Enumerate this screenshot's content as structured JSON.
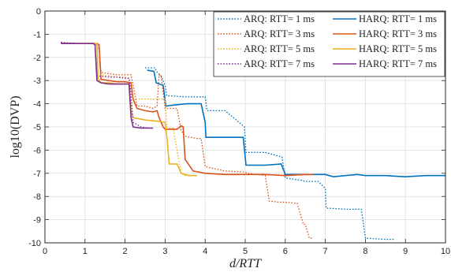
{
  "chart_data": {
    "type": "line",
    "xlabel": "d/RTT",
    "ylabel": "log10(DVP)",
    "xlim": [
      0,
      10
    ],
    "ylim": [
      -10,
      0
    ],
    "x_ticks": [
      "0",
      "1",
      "2",
      "3",
      "4",
      "5",
      "6",
      "7",
      "8",
      "9",
      "10"
    ],
    "y_ticks": [
      "0",
      "-1",
      "-2",
      "-3",
      "-4",
      "-5",
      "-6",
      "-7",
      "-8",
      "-9",
      "-10"
    ],
    "grid": true,
    "legend_position": "top-right",
    "series": [
      {
        "name": "ARQ: RTT= 1 ms",
        "color": "#0072BD",
        "style": "dotted",
        "x": [
          2.5,
          2.75,
          2.78,
          2.9,
          3.0,
          3.04,
          3.5,
          4.0,
          4.05,
          4.5,
          4.98,
          5.02,
          5.5,
          5.92,
          6.0,
          6.4,
          6.5,
          6.82,
          7.0,
          7.02,
          7.5,
          7.9,
          8.0,
          8.5,
          8.75
        ],
        "y": [
          -2.45,
          -2.45,
          -2.6,
          -2.8,
          -3.2,
          -3.65,
          -3.7,
          -3.7,
          -4.3,
          -4.3,
          -5.0,
          -6.1,
          -6.1,
          -6.3,
          -7.2,
          -7.3,
          -7.35,
          -7.35,
          -7.65,
          -8.5,
          -8.55,
          -8.55,
          -9.8,
          -9.85,
          -9.85
        ]
      },
      {
        "name": "HARQ: RTT= 1 ms",
        "color": "#0072BD",
        "style": "solid",
        "x": [
          2.55,
          2.72,
          2.78,
          2.95,
          3.02,
          3.25,
          3.55,
          3.9,
          4.0,
          4.02,
          4.4,
          4.95,
          5.02,
          5.5,
          5.9,
          6.0,
          6.5,
          7.0,
          7.2,
          7.5,
          7.8,
          8.0,
          8.5,
          9.0,
          9.5,
          10.0
        ],
        "y": [
          -2.55,
          -2.6,
          -3.1,
          -3.2,
          -4.1,
          -4.05,
          -4.0,
          -4.0,
          -4.8,
          -5.45,
          -5.45,
          -5.45,
          -6.65,
          -6.65,
          -6.6,
          -7.05,
          -7.05,
          -7.05,
          -7.15,
          -7.1,
          -7.05,
          -7.1,
          -7.1,
          -7.15,
          -7.1,
          -7.1
        ]
      },
      {
        "name": "ARQ: RTT= 3 ms",
        "color": "#D95319",
        "style": "dotted",
        "x": [
          0.4,
          0.8,
          1.0,
          1.1,
          1.2,
          1.3,
          1.35,
          1.4,
          1.6,
          1.8,
          2.0,
          2.15,
          2.2,
          2.3,
          2.5,
          2.7,
          2.8,
          2.85,
          2.9,
          3.0,
          3.3,
          3.4,
          3.5,
          3.8,
          3.9,
          4.0,
          4.1,
          4.5,
          5.0,
          5.05,
          5.3,
          5.5,
          5.6,
          5.85,
          5.9,
          6.0,
          6.3,
          6.45,
          6.5,
          6.6,
          6.7
        ],
        "y": [
          -1.35,
          -1.4,
          -1.4,
          -1.4,
          -1.4,
          -1.45,
          -1.65,
          -2.65,
          -2.7,
          -2.75,
          -2.75,
          -2.75,
          -3.2,
          -4.1,
          -4.1,
          -4.2,
          -4.1,
          -2.75,
          -2.8,
          -4.2,
          -4.2,
          -5.15,
          -5.4,
          -5.5,
          -5.5,
          -6.7,
          -6.75,
          -6.9,
          -6.95,
          -7.0,
          -7.05,
          -7.1,
          -8.2,
          -8.25,
          -8.25,
          -8.25,
          -8.3,
          -9.2,
          -9.2,
          -9.8,
          -9.8
        ]
      },
      {
        "name": "HARQ: RTT= 3 ms",
        "color": "#D95319",
        "style": "solid",
        "x": [
          0.4,
          0.8,
          1.0,
          1.1,
          1.2,
          1.3,
          1.35,
          1.4,
          1.6,
          1.8,
          2.0,
          2.15,
          2.2,
          2.3,
          2.5,
          2.7,
          2.8,
          2.85,
          2.95,
          3.0,
          3.3,
          3.4,
          3.45,
          3.5,
          3.7,
          4.0,
          4.5,
          5.0,
          5.5,
          6.0,
          6.5,
          6.7
        ],
        "y": [
          -1.4,
          -1.4,
          -1.4,
          -1.4,
          -1.4,
          -1.4,
          -1.45,
          -2.95,
          -3.0,
          -3.05,
          -3.05,
          -3.1,
          -3.8,
          -4.2,
          -4.3,
          -4.35,
          -4.3,
          -4.6,
          -5.0,
          -5.1,
          -5.1,
          -4.95,
          -5.0,
          -6.4,
          -6.9,
          -7.0,
          -7.05,
          -7.05,
          -7.05,
          -7.1,
          -7.05,
          -7.05
        ]
      },
      {
        "name": "ARQ: RTT= 5 ms",
        "color": "#EDB120",
        "style": "dotted",
        "x": [
          0.4,
          0.8,
          1.0,
          1.1,
          1.2,
          1.3,
          1.32,
          1.4,
          1.6,
          1.8,
          2.0,
          2.1,
          2.15,
          2.2,
          2.5,
          2.8,
          3.0,
          3.05,
          3.1,
          3.2,
          3.4,
          3.5,
          3.7
        ],
        "y": [
          -1.4,
          -1.4,
          -1.4,
          -1.4,
          -1.4,
          -1.4,
          -2.7,
          -2.75,
          -2.8,
          -2.85,
          -2.85,
          -2.9,
          -3.5,
          -3.8,
          -3.8,
          -3.8,
          -3.8,
          -5.0,
          -5.05,
          -5.05,
          -7.0,
          -7.1,
          -7.1
        ]
      },
      {
        "name": "HARQ: RTT= 5 ms",
        "color": "#EDB120",
        "style": "solid",
        "x": [
          0.4,
          0.8,
          1.0,
          1.1,
          1.2,
          1.3,
          1.32,
          1.4,
          1.6,
          1.8,
          2.0,
          2.1,
          2.15,
          2.2,
          2.5,
          2.8,
          3.0,
          3.05,
          3.1,
          3.3,
          3.4,
          3.6,
          3.8
        ],
        "y": [
          -1.4,
          -1.4,
          -1.4,
          -1.4,
          -1.4,
          -1.4,
          -2.9,
          -3.1,
          -3.1,
          -3.15,
          -3.15,
          -3.15,
          -4.3,
          -4.6,
          -4.7,
          -4.75,
          -4.8,
          -5.5,
          -6.6,
          -6.6,
          -7.0,
          -7.1,
          -7.1
        ]
      },
      {
        "name": "ARQ: RTT= 7 ms",
        "color": "#7E2F8E",
        "style": "dotted",
        "x": [
          0.4,
          0.8,
          1.0,
          1.1,
          1.2,
          1.25,
          1.3,
          1.6,
          1.8,
          2.0,
          2.1,
          2.15,
          2.2,
          2.4,
          2.6,
          2.7
        ],
        "y": [
          -1.35,
          -1.4,
          -1.4,
          -1.4,
          -1.4,
          -1.45,
          -2.8,
          -2.85,
          -2.85,
          -2.9,
          -2.9,
          -3.6,
          -4.8,
          -5.0,
          -5.05,
          -5.05
        ]
      },
      {
        "name": "HARQ: RTT= 7 ms",
        "color": "#7E2F8E",
        "style": "solid",
        "x": [
          0.4,
          0.8,
          1.0,
          1.1,
          1.2,
          1.25,
          1.3,
          1.4,
          1.6,
          1.8,
          2.0,
          2.1,
          2.15,
          2.2,
          2.4,
          2.6,
          2.7
        ],
        "y": [
          -1.4,
          -1.4,
          -1.4,
          -1.4,
          -1.4,
          -1.45,
          -3.0,
          -3.1,
          -3.15,
          -3.15,
          -3.15,
          -3.15,
          -4.6,
          -5.0,
          -5.05,
          -5.05,
          -5.05
        ]
      }
    ]
  }
}
